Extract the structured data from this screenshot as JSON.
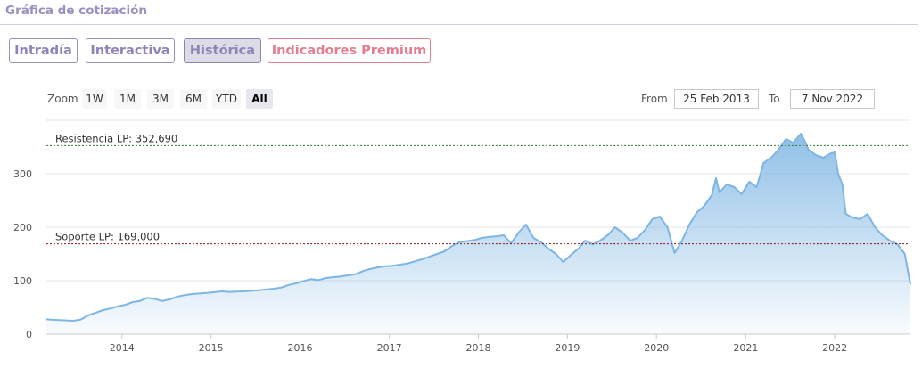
{
  "header": {
    "title": "Gráfica de cotización"
  },
  "tabs": [
    {
      "label": "Intradía",
      "active": false
    },
    {
      "label": "Interactiva",
      "active": false
    },
    {
      "label": "Histórica",
      "active": true
    },
    {
      "label": "Indicadores Premium",
      "active": false,
      "premium": true
    }
  ],
  "zoom": {
    "label": "Zoom",
    "buttons": [
      "1W",
      "1M",
      "3M",
      "6M",
      "YTD",
      "All"
    ],
    "selected": "All"
  },
  "range": {
    "from_label": "From",
    "from_value": "25 Feb 2013",
    "to_label": "To",
    "to_value": "7 Nov 2022"
  },
  "colors": {
    "accent": "#9a8fbe",
    "premium": "#e27e90",
    "series_line": "#7db5e3",
    "resistance_line": "#2e7d32",
    "support_line": "#8b1a1a"
  },
  "chart_data": {
    "type": "area",
    "title": "",
    "xlabel": "",
    "ylabel": "",
    "ylim": [
      0,
      400
    ],
    "xlim": [
      "2013-02-25",
      "2022-11-07"
    ],
    "y_ticks": [
      0,
      100,
      200,
      300
    ],
    "x_ticks": [
      "2014",
      "2015",
      "2016",
      "2017",
      "2018",
      "2019",
      "2020",
      "2021",
      "2022"
    ],
    "grid": true,
    "legend": "none",
    "annotations": [
      {
        "label": "Resistencia LP: 352,690",
        "y": 352.69
      },
      {
        "label": "Soporte LP: 169,000",
        "y": 169.0
      }
    ],
    "series": [
      {
        "x": [
          "2013-02-25",
          "2013-03-15",
          "2013-05-01",
          "2013-06-15",
          "2013-07-15",
          "2013-08-15",
          "2013-09-15",
          "2013-10-15",
          "2013-11-15",
          "2013-12-15",
          "2014-01-15",
          "2014-02-15",
          "2014-03-15",
          "2014-04-15",
          "2014-05-15",
          "2014-06-15",
          "2014-07-15",
          "2014-08-15",
          "2014-09-15",
          "2014-10-15",
          "2014-11-15",
          "2014-12-15",
          "2015-02-15",
          "2015-03-15",
          "2015-05-15",
          "2015-07-15",
          "2015-09-15",
          "2015-10-15",
          "2015-11-15",
          "2015-12-15",
          "2016-01-15",
          "2016-02-15",
          "2016-03-15",
          "2016-04-15",
          "2016-06-15",
          "2016-08-15",
          "2016-09-15",
          "2016-10-15",
          "2016-11-15",
          "2016-12-15",
          "2017-01-15",
          "2017-03-15",
          "2017-05-15",
          "2017-06-15",
          "2017-08-15",
          "2017-09-15",
          "2017-10-15",
          "2017-12-15",
          "2018-01-15",
          "2018-02-15",
          "2018-03-15",
          "2018-04-15",
          "2018-05-15",
          "2018-06-15",
          "2018-07-15",
          "2018-08-15",
          "2018-09-15",
          "2018-10-15",
          "2018-11-15",
          "2018-12-15",
          "2019-01-15",
          "2019-02-15",
          "2019-03-15",
          "2019-04-15",
          "2019-05-15",
          "2019-06-15",
          "2019-07-15",
          "2019-08-15",
          "2019-09-15",
          "2019-10-15",
          "2019-11-15",
          "2019-12-15",
          "2020-01-15",
          "2020-02-15",
          "2020-03-15",
          "2020-04-15",
          "2020-05-15",
          "2020-06-15",
          "2020-07-15",
          "2020-08-15",
          "2020-09-01",
          "2020-09-15",
          "2020-10-15",
          "2020-11-15",
          "2020-12-15",
          "2021-01-15",
          "2021-02-15",
          "2021-03-15",
          "2021-04-15",
          "2021-05-15",
          "2021-06-15",
          "2021-07-15",
          "2021-08-15",
          "2021-09-01",
          "2021-09-15",
          "2021-10-15",
          "2021-11-15",
          "2021-12-15",
          "2022-01-01",
          "2022-01-15",
          "2022-02-01",
          "2022-02-15",
          "2022-03-15",
          "2022-04-15",
          "2022-05-15",
          "2022-06-15",
          "2022-07-15",
          "2022-08-15",
          "2022-09-15",
          "2022-10-15",
          "2022-11-07"
        ],
        "values": [
          28,
          27,
          26,
          25,
          27,
          35,
          40,
          45,
          48,
          52,
          55,
          60,
          62,
          68,
          66,
          62,
          65,
          70,
          73,
          75,
          76,
          77,
          80,
          79,
          80,
          82,
          85,
          87,
          92,
          95,
          99,
          103,
          101,
          105,
          108,
          112,
          118,
          122,
          125,
          127,
          128,
          132,
          140,
          145,
          155,
          165,
          172,
          176,
          180,
          182,
          183,
          185,
          170,
          190,
          205,
          180,
          172,
          160,
          150,
          135,
          148,
          160,
          175,
          168,
          175,
          185,
          200,
          190,
          175,
          180,
          195,
          215,
          220,
          200,
          152,
          175,
          205,
          228,
          240,
          260,
          292,
          265,
          280,
          275,
          262,
          285,
          275,
          320,
          330,
          345,
          365,
          358,
          375,
          360,
          345,
          335,
          330,
          338,
          340,
          300,
          280,
          225,
          218,
          215,
          225,
          200,
          185,
          175,
          168,
          150,
          93
        ]
      }
    ]
  }
}
